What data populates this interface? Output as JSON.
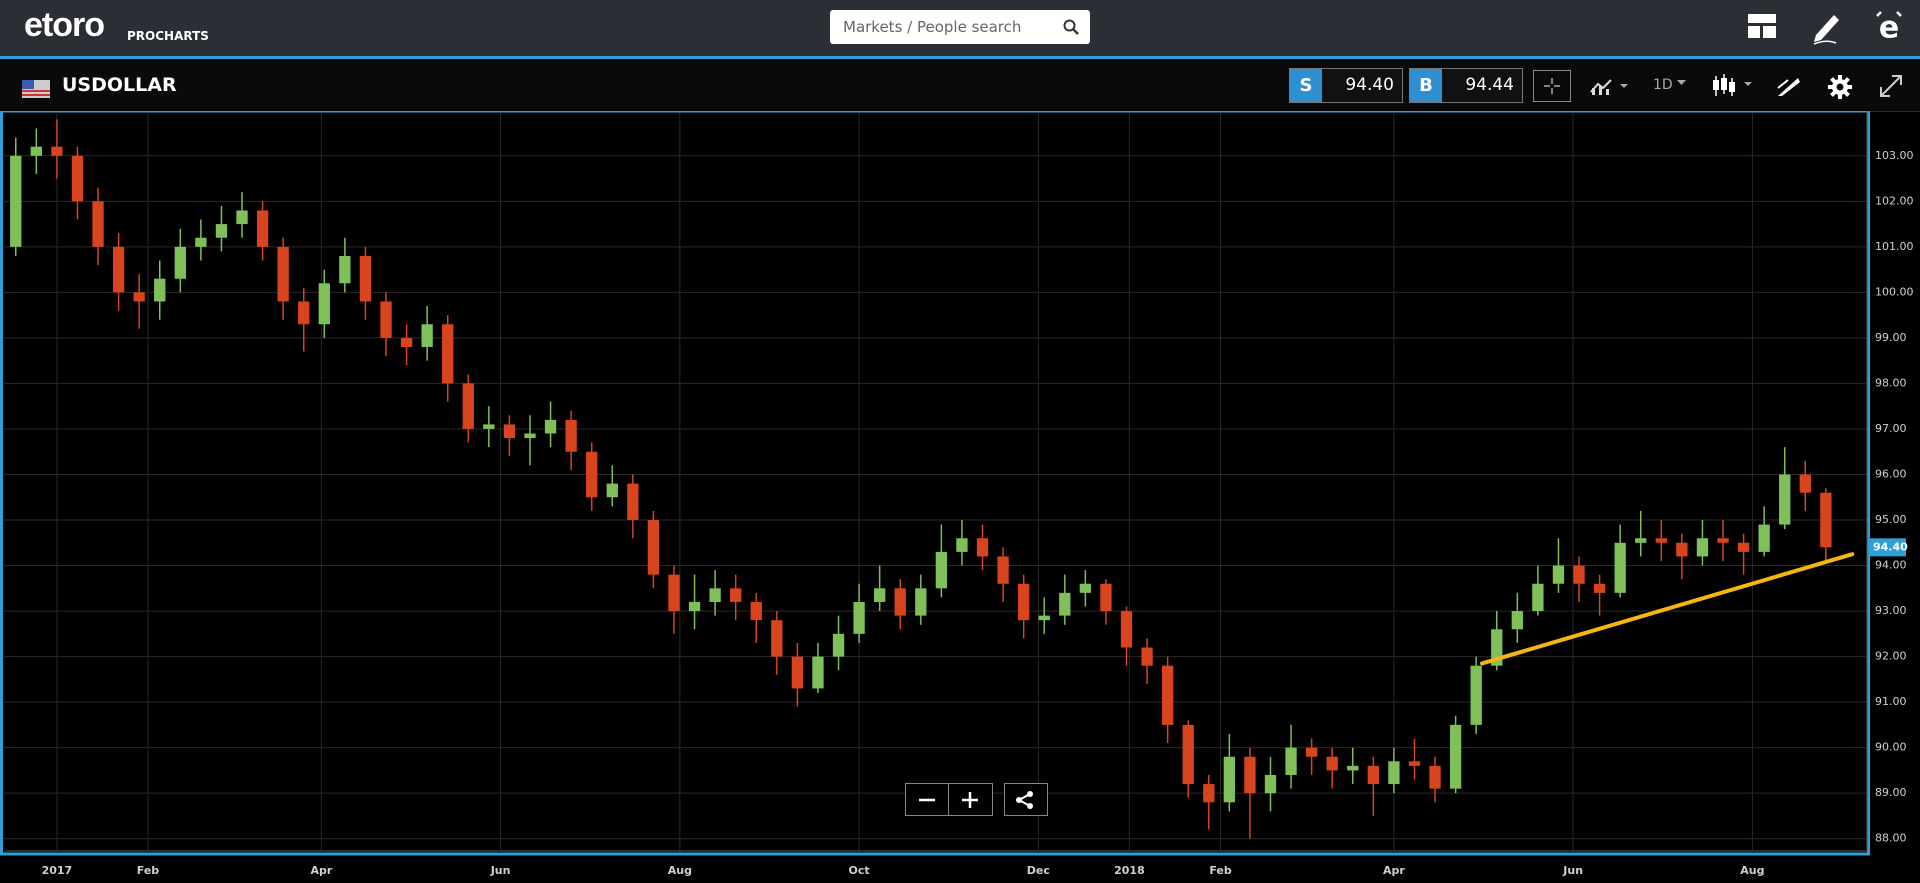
{
  "header": {
    "logo": "etoro",
    "logo_sub": "PROCHARTS",
    "search_placeholder": "Markets / People search"
  },
  "instrument": {
    "name": "USDOLLAR",
    "sell_label": "S",
    "sell_price": "94.40",
    "buy_label": "B",
    "buy_price": "94.44",
    "timeframe": "1D"
  },
  "chart_data": {
    "type": "candlestick",
    "x": [
      -14,
      -7,
      0,
      7,
      14,
      21,
      28,
      35,
      42,
      49,
      56,
      63,
      70,
      77,
      84,
      91,
      98,
      105,
      112,
      119,
      126,
      133,
      140,
      147,
      154,
      161,
      168,
      175,
      182,
      189,
      196,
      203,
      210,
      217,
      224,
      231,
      238,
      245,
      252,
      259,
      266,
      273,
      280,
      287,
      294,
      301,
      308,
      315,
      322,
      329,
      336,
      343,
      350,
      357,
      364,
      371,
      378,
      385,
      392,
      399,
      406,
      413,
      420,
      427,
      434,
      441,
      448,
      455,
      462,
      469,
      476,
      483,
      490,
      497,
      504,
      511,
      518,
      525,
      532,
      539,
      546,
      553,
      560,
      567,
      574,
      581,
      588,
      595,
      602
    ],
    "open": [
      101.0,
      103.0,
      103.2,
      103.0,
      102.0,
      101.0,
      100.0,
      99.8,
      100.3,
      101.0,
      101.2,
      101.5,
      101.8,
      101.0,
      99.8,
      99.3,
      100.2,
      100.8,
      99.8,
      99.0,
      98.8,
      99.3,
      98.0,
      97.0,
      97.1,
      96.8,
      96.9,
      97.2,
      96.5,
      95.5,
      95.8,
      95.0,
      93.8,
      93.0,
      93.2,
      93.5,
      93.2,
      92.8,
      92.0,
      91.3,
      92.0,
      92.5,
      93.2,
      93.5,
      92.9,
      93.5,
      94.3,
      94.6,
      94.2,
      93.6,
      92.8,
      92.9,
      93.4,
      93.6,
      93.0,
      92.2,
      91.8,
      90.5,
      89.2,
      88.8,
      89.8,
      89.0,
      89.4,
      90.0,
      89.8,
      89.5,
      89.6,
      89.2,
      89.7,
      89.6,
      89.1,
      90.5,
      91.8,
      92.6,
      93.0,
      93.6,
      94.0,
      93.6,
      93.4,
      94.5,
      94.6,
      94.5,
      94.2,
      94.6,
      94.5,
      94.3,
      94.9,
      96.0,
      95.6
    ],
    "high": [
      103.4,
      103.6,
      103.8,
      103.2,
      102.3,
      101.3,
      100.4,
      100.7,
      101.4,
      101.6,
      101.9,
      102.2,
      102.0,
      101.2,
      100.1,
      100.5,
      101.2,
      101.0,
      100.0,
      99.3,
      99.7,
      99.5,
      98.2,
      97.5,
      97.3,
      97.3,
      97.6,
      97.4,
      96.7,
      96.2,
      96.0,
      95.2,
      94.0,
      93.8,
      93.9,
      93.8,
      93.4,
      93.0,
      92.3,
      92.3,
      92.9,
      93.6,
      94.0,
      93.7,
      93.8,
      94.9,
      95.0,
      94.9,
      94.4,
      93.8,
      93.3,
      93.8,
      93.9,
      93.7,
      93.1,
      92.4,
      92.0,
      90.6,
      89.4,
      90.3,
      90.0,
      89.8,
      90.5,
      90.2,
      90.0,
      90.0,
      89.8,
      90.0,
      90.2,
      89.8,
      90.7,
      92.0,
      93.0,
      93.4,
      94.0,
      94.6,
      94.2,
      93.8,
      94.9,
      95.2,
      95.0,
      94.7,
      95.0,
      95.0,
      94.7,
      95.3,
      96.6,
      96.3,
      95.7
    ],
    "low": [
      100.8,
      102.6,
      102.5,
      101.6,
      100.6,
      99.6,
      99.2,
      99.4,
      100.0,
      100.7,
      100.9,
      101.2,
      100.7,
      99.4,
      98.7,
      99.0,
      100.0,
      99.4,
      98.6,
      98.4,
      98.5,
      97.6,
      96.7,
      96.6,
      96.4,
      96.2,
      96.6,
      96.1,
      95.2,
      95.3,
      94.6,
      93.5,
      92.5,
      92.6,
      92.9,
      92.8,
      92.3,
      91.6,
      90.9,
      91.2,
      91.7,
      92.3,
      93.0,
      92.6,
      92.7,
      93.3,
      94.0,
      93.9,
      93.2,
      92.4,
      92.5,
      92.7,
      93.1,
      92.7,
      91.8,
      91.4,
      90.1,
      88.9,
      88.2,
      88.6,
      88.0,
      88.6,
      89.1,
      89.4,
      89.1,
      89.2,
      88.5,
      89.0,
      89.3,
      88.8,
      89.0,
      90.3,
      91.7,
      92.3,
      92.9,
      93.4,
      93.2,
      92.9,
      93.3,
      94.2,
      94.1,
      93.7,
      94.0,
      94.1,
      93.8,
      94.2,
      94.8,
      95.2,
      94.1
    ],
    "close": [
      103.0,
      103.2,
      103.0,
      102.0,
      101.0,
      100.0,
      99.8,
      100.3,
      101.0,
      101.2,
      101.5,
      101.8,
      101.0,
      99.8,
      99.3,
      100.2,
      100.8,
      99.8,
      99.0,
      98.8,
      99.3,
      98.0,
      97.0,
      97.1,
      96.8,
      96.9,
      97.2,
      96.5,
      95.5,
      95.8,
      95.0,
      93.8,
      93.0,
      93.2,
      93.5,
      93.2,
      92.8,
      92.0,
      91.3,
      92.0,
      92.5,
      93.2,
      93.5,
      92.9,
      93.5,
      94.3,
      94.6,
      94.2,
      93.6,
      92.8,
      92.9,
      93.4,
      93.6,
      93.0,
      92.2,
      91.8,
      90.5,
      89.2,
      88.8,
      89.8,
      89.0,
      89.4,
      90.0,
      89.8,
      89.5,
      89.6,
      89.2,
      89.7,
      89.6,
      89.1,
      90.5,
      91.8,
      92.6,
      93.0,
      93.6,
      94.0,
      93.6,
      93.4,
      94.5,
      94.6,
      94.5,
      94.2,
      94.6,
      94.5,
      94.3,
      94.9,
      96.0,
      95.6,
      94.4
    ],
    "up_color": "#7fc05a",
    "down_color": "#d7441d",
    "xlim": [
      -18,
      616
    ],
    "ylim": [
      87.73,
      103.94
    ],
    "xticks": [
      {
        "value": 0,
        "label": "2017"
      },
      {
        "value": 31,
        "label": "Feb"
      },
      {
        "value": 90,
        "label": "Apr"
      },
      {
        "value": 151,
        "label": "Jun"
      },
      {
        "value": 212,
        "label": "Aug"
      },
      {
        "value": 273,
        "label": "Oct"
      },
      {
        "value": 334,
        "label": "Dec"
      },
      {
        "value": 365,
        "label": "2018"
      },
      {
        "value": 396,
        "label": "Feb"
      },
      {
        "value": 455,
        "label": "Apr"
      },
      {
        "value": 516,
        "label": "Jun"
      },
      {
        "value": 577,
        "label": "Aug"
      }
    ],
    "yticks": [
      {
        "value": 88,
        "label": "88.00"
      },
      {
        "value": 89,
        "label": "89.00"
      },
      {
        "value": 90,
        "label": "90.00"
      },
      {
        "value": 91,
        "label": "91.00"
      },
      {
        "value": 92,
        "label": "92.00"
      },
      {
        "value": 93,
        "label": "93.00"
      },
      {
        "value": 94,
        "label": "94.00"
      },
      {
        "value": 95,
        "label": "95.00"
      },
      {
        "value": 96,
        "label": "96.00"
      },
      {
        "value": 97,
        "label": "97.00"
      },
      {
        "value": 98,
        "label": "98.00"
      },
      {
        "value": 99,
        "label": "99.00"
      },
      {
        "value": 100,
        "label": "100.00"
      },
      {
        "value": 101,
        "label": "101.00"
      },
      {
        "value": 102,
        "label": "102.00"
      },
      {
        "value": 103,
        "label": "103.00"
      }
    ],
    "grid": true,
    "trendline": {
      "x": [
        485,
        611
      ],
      "values": [
        91.85,
        94.25
      ],
      "color": "#f5b70c"
    },
    "last_value": {
      "value": 94.4,
      "label": "94.40",
      "color": "#2f9fd8"
    }
  }
}
